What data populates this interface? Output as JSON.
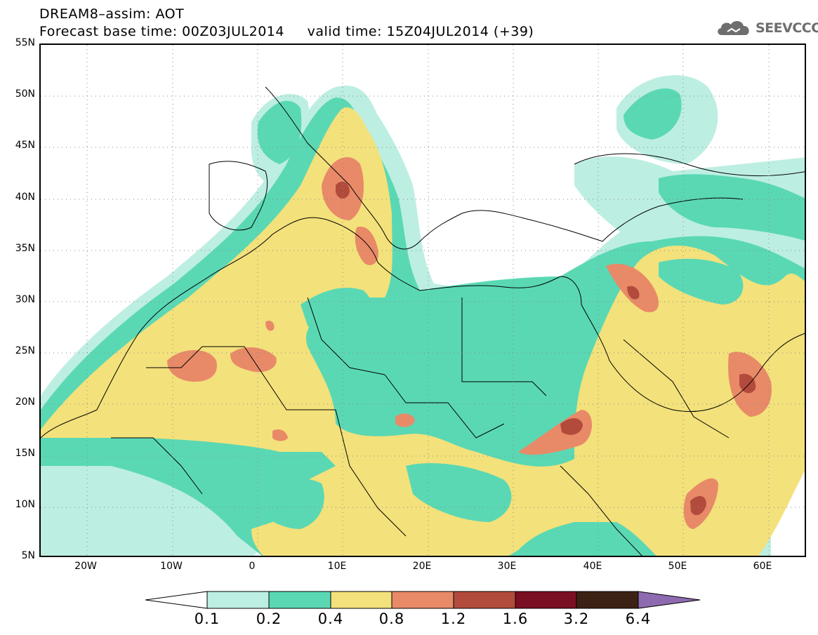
{
  "header": {
    "line1": "DREAM8–assim: AOT",
    "line2": "Forecast base time: 00Z03JUL2014     valid time: 15Z04JUL2014 (+39)"
  },
  "logo": {
    "text": "SEEVCCC",
    "icon": "cloud-icon",
    "color": "#6e6e6e"
  },
  "map": {
    "lat_labels": [
      "55N",
      "50N",
      "45N",
      "40N",
      "35N",
      "30N",
      "25N",
      "20N",
      "15N",
      "10N",
      "5N"
    ],
    "lon_labels": [
      "20W",
      "10W",
      "0",
      "10E",
      "20E",
      "30E",
      "40E",
      "50E",
      "60E"
    ]
  },
  "colorbar": {
    "labels": [
      "0.1",
      "0.2",
      "0.4",
      "0.8",
      "1.2",
      "1.6",
      "3.2",
      "6.4"
    ],
    "colors": {
      "below": "#ffffff",
      "c1": "#bdeee2",
      "c2": "#5ad8b4",
      "c3": "#f3e17b",
      "c4": "#e88a68",
      "c5": "#b34b3c",
      "c6": "#7a0e22",
      "c7": "#3c2214",
      "above": "#8e6bb0"
    }
  }
}
